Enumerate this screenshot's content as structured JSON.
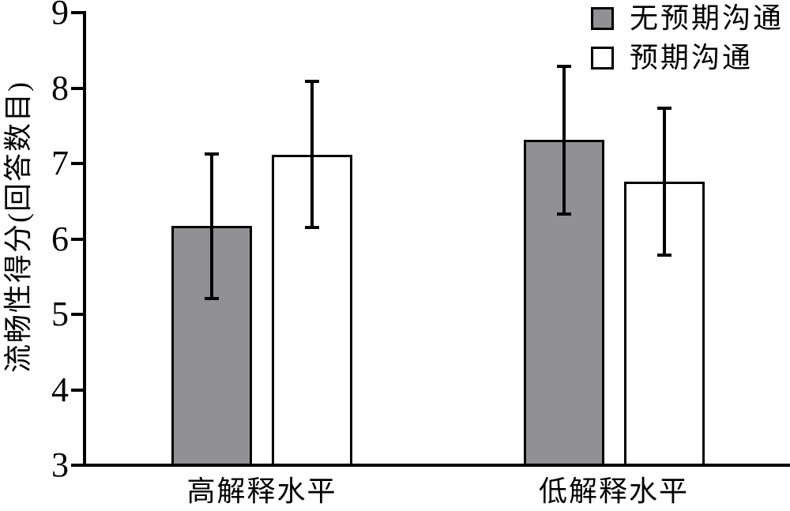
{
  "chart_data": {
    "type": "bar",
    "title": "",
    "categories": [
      "高解释水平",
      "低解释水平"
    ],
    "series": [
      {
        "name": "无预期沟通",
        "values": [
          6.17,
          7.31
        ],
        "errors": [
          0.96,
          0.98
        ],
        "fill": "#919194"
      },
      {
        "name": "预期沟通",
        "values": [
          7.12,
          6.76
        ],
        "errors": [
          0.97,
          0.97
        ],
        "fill": "#ffffff"
      }
    ],
    "xlabel": "",
    "ylabel": "流畅性得分(回答数目)",
    "ylim": [
      3,
      9
    ],
    "yticks": [
      3,
      4,
      5,
      6,
      7,
      8,
      9
    ],
    "grid": false,
    "error_bars": true,
    "legend_position": "top-right"
  },
  "colors": {
    "bar_gray": "#919194",
    "bar_white": "#ffffff",
    "line": "#000000",
    "background": "#ffffff"
  }
}
